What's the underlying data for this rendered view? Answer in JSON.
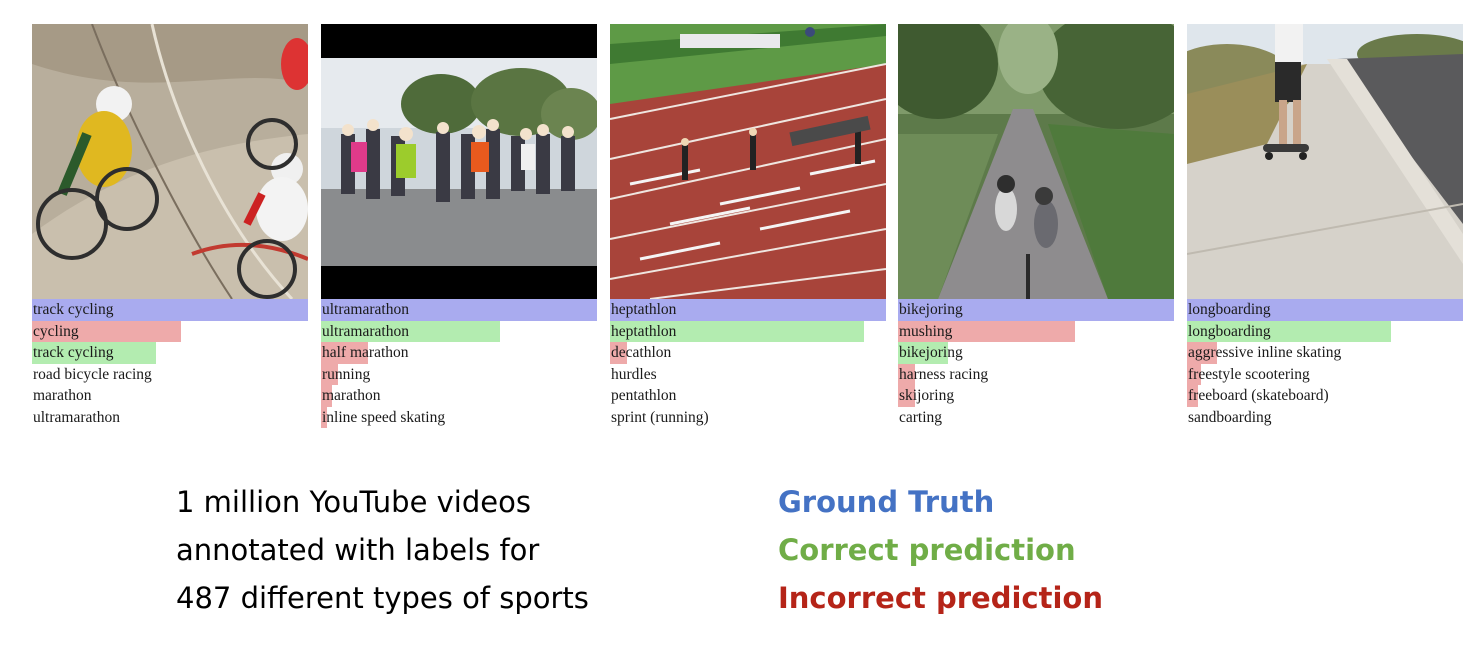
{
  "panels": [
    {
      "scene": "track cycling",
      "rows": [
        {
          "text": "track cycling",
          "kind": "gt",
          "score": 1.0
        },
        {
          "text": "cycling",
          "kind": "wrong",
          "score": 0.54
        },
        {
          "text": "track cycling",
          "kind": "correct",
          "score": 0.45
        },
        {
          "text": "road bicycle racing",
          "kind": "none",
          "score": 0
        },
        {
          "text": "marathon",
          "kind": "none",
          "score": 0
        },
        {
          "text": "ultramarathon",
          "kind": "none",
          "score": 0
        }
      ]
    },
    {
      "scene": "marathon runners",
      "rows": [
        {
          "text": "ultramarathon",
          "kind": "gt",
          "score": 1.0
        },
        {
          "text": "ultramarathon",
          "kind": "correct",
          "score": 0.65
        },
        {
          "text": "half marathon",
          "kind": "wrong",
          "score": 0.17
        },
        {
          "text": "running",
          "kind": "wrong",
          "score": 0.06
        },
        {
          "text": "marathon",
          "kind": "wrong",
          "score": 0.04
        },
        {
          "text": "inline speed skating",
          "kind": "wrong",
          "score": 0.02
        }
      ]
    },
    {
      "scene": "hurdles track",
      "rows": [
        {
          "text": "heptathlon",
          "kind": "gt",
          "score": 1.0
        },
        {
          "text": "heptathlon",
          "kind": "correct",
          "score": 0.92
        },
        {
          "text": "decathlon",
          "kind": "wrong",
          "score": 0.06
        },
        {
          "text": "hurdles",
          "kind": "none",
          "score": 0
        },
        {
          "text": "pentathlon",
          "kind": "none",
          "score": 0
        },
        {
          "text": "sprint (running)",
          "kind": "none",
          "score": 0
        }
      ]
    },
    {
      "scene": "dogs on trail",
      "rows": [
        {
          "text": "bikejoring",
          "kind": "gt",
          "score": 1.0
        },
        {
          "text": "mushing",
          "kind": "wrong",
          "score": 0.64
        },
        {
          "text": "bikejoring",
          "kind": "correct",
          "score": 0.18
        },
        {
          "text": "harness racing",
          "kind": "wrong",
          "score": 0.06
        },
        {
          "text": "skijoring",
          "kind": "wrong",
          "score": 0.06
        },
        {
          "text": "carting",
          "kind": "none",
          "score": 0
        }
      ]
    },
    {
      "scene": "longboarding road",
      "rows": [
        {
          "text": "longboarding",
          "kind": "gt",
          "score": 1.0
        },
        {
          "text": "longboarding",
          "kind": "correct",
          "score": 0.74
        },
        {
          "text": "aggressive inline skating",
          "kind": "wrong",
          "score": 0.11
        },
        {
          "text": "freestyle scootering",
          "kind": "wrong",
          "score": 0.05
        },
        {
          "text": "freeboard (skateboard)",
          "kind": "wrong",
          "score": 0.04
        },
        {
          "text": "sandboarding",
          "kind": "none",
          "score": 0
        }
      ]
    }
  ],
  "caption": {
    "line1": "1 million YouTube videos",
    "line2": "annotated with labels for",
    "line3": "487 different types of sports"
  },
  "legend": {
    "ground_truth": "Ground Truth",
    "correct": "Correct prediction",
    "incorrect": "Incorrect prediction"
  },
  "colors": {
    "ground_truth_bar": "#a9abef",
    "correct_bar": "#b3ecb0",
    "incorrect_bar": "#eeaaaa",
    "ground_truth_text": "#4472c4",
    "correct_text": "#70ad47",
    "incorrect_text": "#b52418"
  }
}
